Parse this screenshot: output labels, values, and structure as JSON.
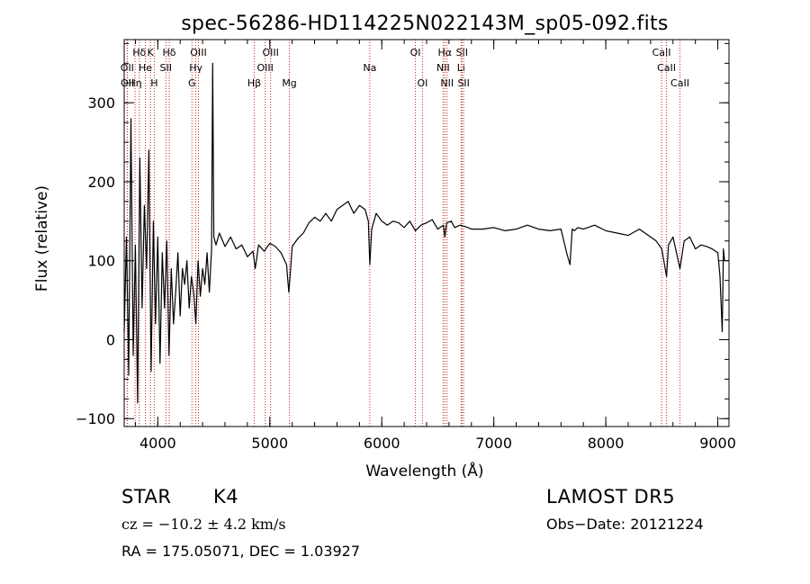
{
  "chart_data": {
    "type": "line",
    "title": "spec-56286-HD114225N022143M_sp05-092.fits",
    "xlabel": "Wavelength (Å)",
    "ylabel": "Flux (relative)",
    "xlim": [
      3700,
      9100
    ],
    "ylim": [
      -110,
      380
    ],
    "x_ticks": [
      4000,
      5000,
      6000,
      7000,
      8000,
      9000
    ],
    "y_ticks": [
      -100,
      0,
      100,
      200,
      300
    ],
    "grid": false,
    "line_color": "#000000",
    "marker_color": "#cc2222",
    "series": [
      {
        "x": [
          3700,
          3720,
          3740,
          3760,
          3780,
          3800,
          3820,
          3840,
          3860,
          3880,
          3900,
          3920,
          3940,
          3960,
          3980,
          4000,
          4020,
          4040,
          4060,
          4080,
          4100,
          4120,
          4140,
          4160,
          4180,
          4200,
          4220,
          4240,
          4260,
          4280,
          4300,
          4320,
          4340,
          4360,
          4380,
          4400,
          4420,
          4440,
          4460,
          4480,
          4490,
          4500,
          4520,
          4550,
          4600,
          4650,
          4700,
          4750,
          4800,
          4850,
          4870,
          4900,
          4950,
          5000,
          5050,
          5100,
          5150,
          5170,
          5183,
          5200,
          5250,
          5300,
          5350,
          5400,
          5450,
          5500,
          5550,
          5600,
          5650,
          5700,
          5750,
          5800,
          5850,
          5880,
          5893,
          5910,
          5950,
          6000,
          6050,
          6100,
          6150,
          6200,
          6250,
          6300,
          6350,
          6400,
          6450,
          6500,
          6550,
          6563,
          6580,
          6620,
          6650,
          6700,
          6750,
          6800,
          6900,
          7000,
          7100,
          7200,
          7300,
          7400,
          7500,
          7600,
          7650,
          7680,
          7700,
          7720,
          7750,
          7800,
          7900,
          8000,
          8100,
          8200,
          8300,
          8400,
          8450,
          8500,
          8542,
          8560,
          8600,
          8662,
          8700,
          8750,
          8800,
          8850,
          8900,
          8950,
          9000,
          9020,
          9040,
          9050,
          9060
        ],
        "y": [
          10,
          130,
          -45,
          280,
          -20,
          120,
          -80,
          230,
          40,
          170,
          90,
          240,
          -40,
          150,
          20,
          130,
          -30,
          110,
          40,
          125,
          -20,
          90,
          20,
          60,
          110,
          30,
          90,
          70,
          100,
          40,
          80,
          60,
          20,
          100,
          55,
          90,
          70,
          110,
          60,
          115,
          350,
          130,
          120,
          135,
          118,
          130,
          115,
          120,
          105,
          112,
          90,
          120,
          112,
          122,
          118,
          110,
          95,
          60,
          85,
          118,
          128,
          135,
          148,
          155,
          150,
          160,
          150,
          165,
          170,
          175,
          160,
          170,
          165,
          150,
          95,
          140,
          160,
          150,
          145,
          150,
          148,
          142,
          150,
          138,
          145,
          148,
          152,
          140,
          145,
          130,
          148,
          150,
          142,
          145,
          143,
          140,
          140,
          142,
          138,
          140,
          145,
          140,
          138,
          140,
          110,
          95,
          140,
          138,
          142,
          140,
          145,
          138,
          135,
          132,
          140,
          130,
          125,
          115,
          80,
          120,
          130,
          90,
          125,
          130,
          115,
          120,
          118,
          115,
          110,
          80,
          10,
          115,
          100
        ]
      }
    ],
    "line_markers": [
      {
        "label": "Hδ",
        "x": 3835,
        "row": 1
      },
      {
        "label": "K",
        "x": 3934,
        "row": 1
      },
      {
        "label": "Hδ",
        "x": 4102,
        "row": 1
      },
      {
        "label": "OIII",
        "x": 4363,
        "row": 1
      },
      {
        "label": "OIII",
        "x": 5007,
        "row": 1
      },
      {
        "label": "OI",
        "x": 6300,
        "row": 1
      },
      {
        "label": "Hα",
        "x": 6563,
        "row": 1
      },
      {
        "label": "SII",
        "x": 6716,
        "row": 1
      },
      {
        "label": "CaII",
        "x": 8498,
        "row": 1
      },
      {
        "label": "OII",
        "x": 3727,
        "row": 2
      },
      {
        "label": "He",
        "x": 3889,
        "row": 2
      },
      {
        "label": "SII",
        "x": 4072,
        "row": 2
      },
      {
        "label": "Hγ",
        "x": 4340,
        "row": 2
      },
      {
        "label": "OIII",
        "x": 4959,
        "row": 2
      },
      {
        "label": "Na",
        "x": 5893,
        "row": 2
      },
      {
        "label": "NII",
        "x": 6548,
        "row": 2
      },
      {
        "label": "Li",
        "x": 6708,
        "row": 2
      },
      {
        "label": "CaII",
        "x": 8542,
        "row": 2
      },
      {
        "label": "OII",
        "x": 3729,
        "row": 3
      },
      {
        "label": "Hη",
        "x": 3797,
        "row": 3
      },
      {
        "label": "H",
        "x": 3968,
        "row": 3
      },
      {
        "label": "G",
        "x": 4305,
        "row": 3
      },
      {
        "label": "Hβ",
        "x": 4861,
        "row": 3
      },
      {
        "label": "Mg",
        "x": 5175,
        "row": 3
      },
      {
        "label": "OI",
        "x": 6363,
        "row": 3
      },
      {
        "label": "NII",
        "x": 6583,
        "row": 3
      },
      {
        "label": "SII",
        "x": 6731,
        "row": 3
      },
      {
        "label": "CaII",
        "x": 8662,
        "row": 3
      }
    ]
  },
  "info": {
    "class_label": "STAR",
    "subclass_label": "K4",
    "cz_text": "cz = −10.2 ± 4.2 km/s",
    "coords_text": "RA = 175.05071, DEC =   1.03927",
    "survey_label": "LAMOST  DR5",
    "obs_date_text": "Obs−Date: 20121224"
  }
}
